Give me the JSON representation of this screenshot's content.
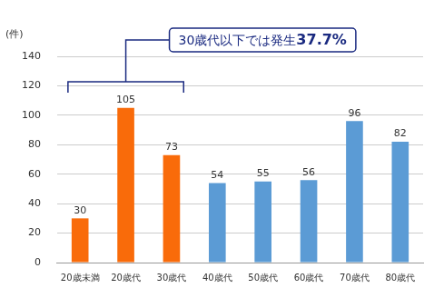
{
  "chart_data": {
    "type": "bar",
    "y_label": "(件)",
    "categories": [
      "20歳未満",
      "20歳代",
      "30歳代",
      "40歳代",
      "50歳代",
      "60歳代",
      "70歳代",
      "80歳代"
    ],
    "values": [
      30,
      105,
      73,
      54,
      55,
      56,
      96,
      82
    ],
    "colors": [
      "#f96b0a",
      "#f96b0a",
      "#f96b0a",
      "#5b9bd5",
      "#5b9bd5",
      "#5b9bd5",
      "#5b9bd5",
      "#5b9bd5"
    ],
    "ylim": [
      0,
      140
    ],
    "yticks": [
      0,
      20,
      40,
      60,
      80,
      100,
      120,
      140
    ],
    "grid": true,
    "data_labels": true,
    "annotation": {
      "text": "30歳代以下では発生37.7%",
      "span": [
        "20歳未満",
        "30歳代"
      ]
    }
  }
}
